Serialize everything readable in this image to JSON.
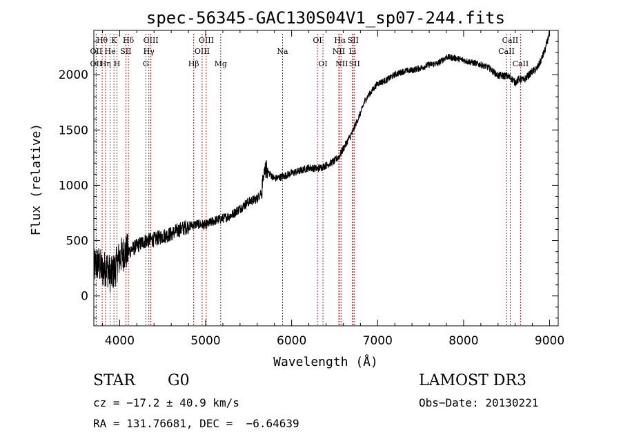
{
  "chart_data": {
    "type": "line",
    "title": "spec-56345-GAC130S04V1_sp07-244.fits",
    "xlabel": "Wavelength (Å)",
    "ylabel": "Flux (relative)",
    "xlim": [
      3700,
      9100
    ],
    "ylim": [
      -270,
      2400
    ],
    "xticks": [
      4000,
      5000,
      6000,
      7000,
      8000,
      9000
    ],
    "yticks": [
      0,
      500,
      1000,
      1500,
      2000
    ],
    "series": [
      {
        "name": "flux",
        "x": [
          3700,
          3750,
          3800,
          3850,
          3900,
          3950,
          4000,
          4050,
          4100,
          4200,
          4300,
          4400,
          4500,
          4600,
          4700,
          4800,
          4900,
          5000,
          5100,
          5200,
          5300,
          5400,
          5500,
          5600,
          5650,
          5700,
          5750,
          5800,
          5900,
          6000,
          6100,
          6200,
          6300,
          6400,
          6500,
          6550,
          6600,
          6650,
          6700,
          6750,
          6800,
          6850,
          6900,
          7000,
          7100,
          7200,
          7300,
          7400,
          7500,
          7600,
          7700,
          7800,
          7900,
          8000,
          8100,
          8200,
          8300,
          8400,
          8500,
          8550,
          8600,
          8650,
          8700,
          8800,
          8850,
          8900,
          8950,
          9000
        ],
        "y": [
          250,
          300,
          230,
          260,
          180,
          250,
          350,
          390,
          400,
          450,
          500,
          510,
          540,
          560,
          600,
          630,
          650,
          640,
          680,
          700,
          730,
          790,
          850,
          880,
          950,
          1150,
          1100,
          1060,
          1080,
          1110,
          1130,
          1160,
          1150,
          1180,
          1220,
          1260,
          1330,
          1400,
          1470,
          1560,
          1650,
          1760,
          1820,
          1920,
          1950,
          2000,
          2030,
          2040,
          2060,
          2090,
          2100,
          2160,
          2150,
          2130,
          2110,
          2090,
          2060,
          1990,
          1990,
          1970,
          1930,
          1960,
          1950,
          2030,
          2050,
          2130,
          2230,
          2380
        ]
      }
    ],
    "lines": [
      {
        "name": "Hθ",
        "wave": 3797,
        "row": 1
      },
      {
        "name": "OII",
        "wave": 3727,
        "row": 2
      },
      {
        "name": "OII",
        "wave": 3727,
        "row": 3
      },
      {
        "name": "K",
        "wave": 3934,
        "row": 1
      },
      {
        "name": "He",
        "wave": 3889,
        "row": 2
      },
      {
        "name": "Hη",
        "wave": 3835,
        "row": 3
      },
      {
        "name": "SII",
        "wave": 4072,
        "row": 2
      },
      {
        "name": "H",
        "wave": 3969,
        "row": 3
      },
      {
        "name": "Hδ",
        "wave": 4102,
        "row": 1
      },
      {
        "name": "OIII",
        "wave": 4363,
        "row": 1
      },
      {
        "name": "Hγ",
        "wave": 4340,
        "row": 2
      },
      {
        "name": "G",
        "wave": 4305,
        "row": 3
      },
      {
        "name": "OIII",
        "wave": 5007,
        "row": 1
      },
      {
        "name": "OIII",
        "wave": 4959,
        "row": 2
      },
      {
        "name": "Hβ",
        "wave": 4861,
        "row": 3
      },
      {
        "name": "Mg",
        "wave": 5175,
        "row": 3
      },
      {
        "name": "Na",
        "wave": 5894,
        "row": 2
      },
      {
        "name": "OI",
        "wave": 6300,
        "row": 1
      },
      {
        "name": "OI",
        "wave": 6364,
        "row": 3
      },
      {
        "name": "Hα",
        "wave": 6563,
        "row": 1
      },
      {
        "name": "NII",
        "wave": 6548,
        "row": 2
      },
      {
        "name": "NII",
        "wave": 6583,
        "row": 3
      },
      {
        "name": "SII",
        "wave": 6716,
        "row": 1
      },
      {
        "name": "Li",
        "wave": 6708,
        "row": 2
      },
      {
        "name": "SII",
        "wave": 6731,
        "row": 3
      },
      {
        "name": "CaII",
        "wave": 8542,
        "row": 1
      },
      {
        "name": "CaII",
        "wave": 8498,
        "row": 2
      },
      {
        "name": "CaII",
        "wave": 8662,
        "row": 3
      }
    ]
  },
  "info": {
    "object_type": "STAR",
    "subclass": "G0",
    "survey": "LAMOST DR3",
    "cz": "cz = −17.2 ± 40.9 km/s",
    "obs_date": "Obs−Date: 20130221",
    "coords": "RA = 131.76681, DEC =  −6.64639"
  }
}
